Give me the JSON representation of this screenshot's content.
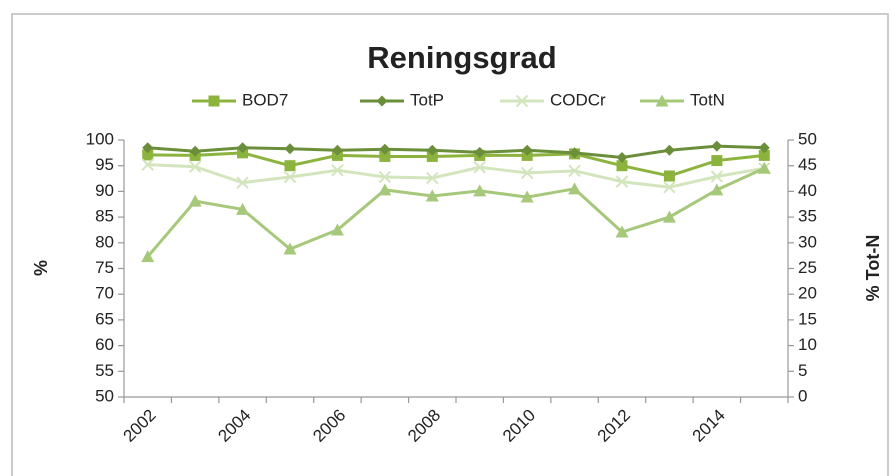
{
  "chart_data": {
    "type": "line",
    "title": "Reningsgrad",
    "categories": [
      "2002",
      null,
      "2004",
      null,
      "2006",
      null,
      "2008",
      null,
      "2010",
      null,
      "2012",
      null,
      "2014",
      null
    ],
    "series": [
      {
        "name": "BOD7",
        "color": "#8db33f",
        "marker": "square",
        "values": [
          97.1,
          97,
          97.5,
          95,
          97,
          96.8,
          96.8,
          97,
          97,
          97.3,
          95,
          93,
          96,
          97
        ]
      },
      {
        "name": "TotP",
        "color": "#6b8e3a",
        "marker": "diamond",
        "values": [
          98.5,
          97.8,
          98.5,
          98.3,
          98,
          98.2,
          98,
          97.6,
          98,
          97.5,
          96.6,
          98,
          98.8,
          98.5
        ]
      },
      {
        "name": "CODCr",
        "color": "#d3e5bd",
        "marker": "x",
        "values": [
          95.2,
          94.8,
          91.7,
          92.8,
          94.1,
          92.8,
          92.6,
          94.7,
          93.6,
          94,
          91.9,
          90.8,
          92.9,
          94.5
        ]
      },
      {
        "name": "TotN",
        "color": "#a5c87a",
        "marker": "triangle",
        "axis": "y2",
        "values": [
          27.3,
          38.1,
          36.5,
          28.8,
          32.5,
          40.3,
          39.1,
          40.1,
          38.9,
          40.5,
          32.1,
          35,
          40.3,
          44.5
        ]
      }
    ],
    "y_label": "%",
    "y2_label": "% Tot-N",
    "ylim": [
      50,
      100
    ],
    "yticks": [
      50,
      55,
      60,
      65,
      70,
      75,
      80,
      85,
      90,
      95,
      100
    ],
    "y2lim": [
      0,
      50
    ],
    "y2ticks": [
      0,
      5,
      10,
      15,
      20,
      25,
      30,
      35,
      40,
      45,
      50
    ],
    "grid": false,
    "legend": "top"
  }
}
